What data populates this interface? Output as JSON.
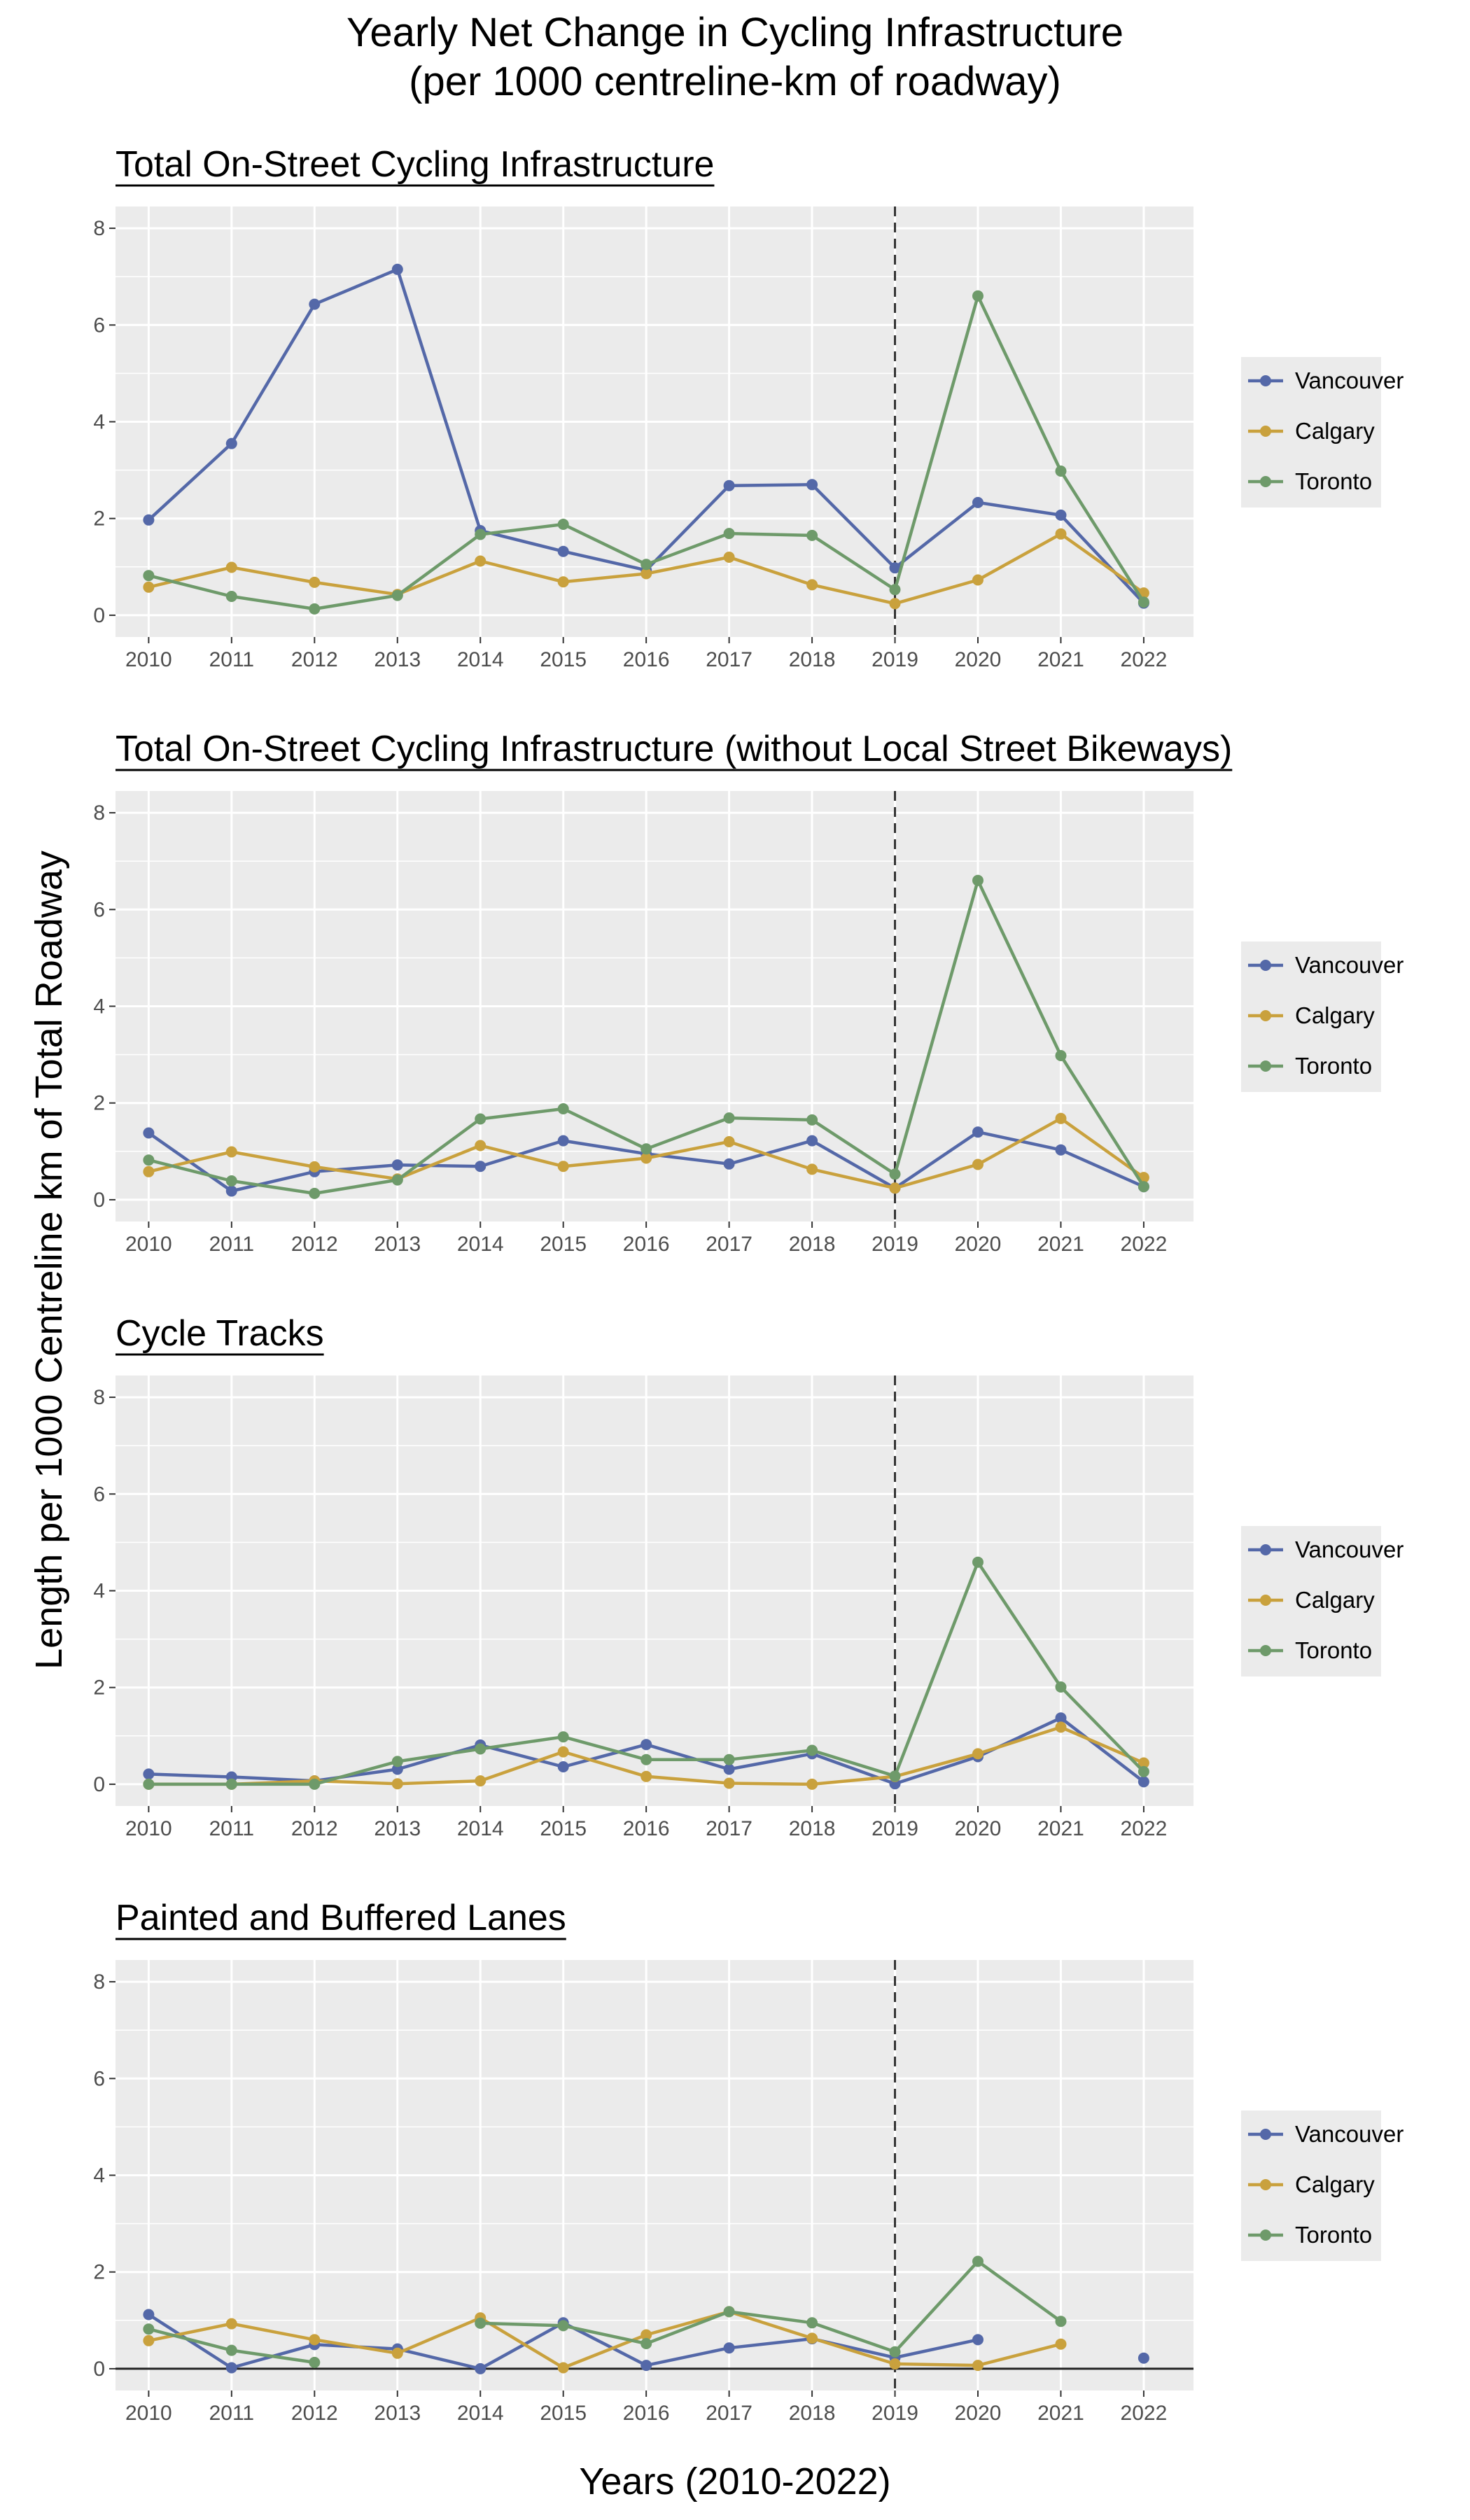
{
  "figure": {
    "title_line1": "Yearly Net Change in Cycling Infrastructure",
    "title_line2": "(per 1000 centreline-km of roadway)",
    "xlabel": "Years (2010-2022)",
    "ylabel": "Length per 1000 Centreline km of Total Roadway"
  },
  "chart_data": [
    {
      "type": "line",
      "title": "Total On-Street Cycling Infrastructure",
      "x": [
        2010,
        2011,
        2012,
        2013,
        2014,
        2015,
        2016,
        2017,
        2018,
        2019,
        2020,
        2021,
        2022
      ],
      "xlim": [
        2009.6,
        2022.6
      ],
      "ylim": [
        -0.45,
        8.45
      ],
      "yticks": [
        0,
        2,
        4,
        6,
        8
      ],
      "reference_line_x": 2019,
      "legend_position": "right",
      "grid": true,
      "series": [
        {
          "name": "Vancouver",
          "color": "#5468A8",
          "values": [
            1.97,
            3.55,
            6.43,
            7.15,
            1.75,
            1.32,
            0.93,
            2.68,
            2.7,
            0.98,
            2.33,
            2.07,
            0.25
          ]
        },
        {
          "name": "Calgary",
          "color": "#C9A13D",
          "values": [
            0.58,
            0.99,
            0.68,
            0.43,
            1.12,
            0.69,
            0.86,
            1.2,
            0.63,
            0.24,
            0.73,
            1.68,
            0.46
          ]
        },
        {
          "name": "Toronto",
          "color": "#6E9A6A",
          "values": [
            0.82,
            0.39,
            0.13,
            0.41,
            1.67,
            1.88,
            1.05,
            1.69,
            1.65,
            0.53,
            6.6,
            2.98,
            0.27
          ]
        }
      ]
    },
    {
      "type": "line",
      "title": "Total On-Street Cycling Infrastructure (without Local Street Bikeways)",
      "x": [
        2010,
        2011,
        2012,
        2013,
        2014,
        2015,
        2016,
        2017,
        2018,
        2019,
        2020,
        2021,
        2022
      ],
      "xlim": [
        2009.6,
        2022.6
      ],
      "ylim": [
        -0.45,
        8.45
      ],
      "yticks": [
        0,
        2,
        4,
        6,
        8
      ],
      "reference_line_x": 2019,
      "legend_position": "right",
      "grid": true,
      "series": [
        {
          "name": "Vancouver",
          "color": "#5468A8",
          "values": [
            1.38,
            0.18,
            0.58,
            0.72,
            0.69,
            1.22,
            0.95,
            0.74,
            1.22,
            0.24,
            1.4,
            1.03,
            0.27
          ]
        },
        {
          "name": "Calgary",
          "color": "#C9A13D",
          "values": [
            0.58,
            0.99,
            0.68,
            0.43,
            1.12,
            0.69,
            0.86,
            1.2,
            0.63,
            0.24,
            0.73,
            1.68,
            0.46
          ]
        },
        {
          "name": "Toronto",
          "color": "#6E9A6A",
          "values": [
            0.82,
            0.39,
            0.13,
            0.41,
            1.67,
            1.88,
            1.05,
            1.69,
            1.65,
            0.53,
            6.6,
            2.98,
            0.27
          ]
        }
      ]
    },
    {
      "type": "line",
      "title": "Cycle Tracks",
      "x": [
        2010,
        2011,
        2012,
        2013,
        2014,
        2015,
        2016,
        2017,
        2018,
        2019,
        2020,
        2021,
        2022
      ],
      "xlim": [
        2009.6,
        2022.6
      ],
      "ylim": [
        -0.45,
        8.45
      ],
      "yticks": [
        0,
        2,
        4,
        6,
        8
      ],
      "reference_line_x": 2019,
      "legend_position": "right",
      "grid": true,
      "series": [
        {
          "name": "Vancouver",
          "color": "#5468A8",
          "values": [
            0.21,
            0.15,
            0.07,
            0.31,
            0.81,
            0.36,
            0.82,
            0.31,
            0.63,
            0.01,
            0.57,
            1.37,
            0.05
          ]
        },
        {
          "name": "Calgary",
          "color": "#C9A13D",
          "values": [
            0.0,
            0.0,
            0.07,
            0.01,
            0.07,
            0.67,
            0.16,
            0.02,
            0.0,
            0.16,
            0.63,
            1.18,
            0.44
          ]
        },
        {
          "name": "Toronto",
          "color": "#6E9A6A",
          "values": [
            0.0,
            0.0,
            0.0,
            0.47,
            0.73,
            0.98,
            0.51,
            0.51,
            0.7,
            0.17,
            4.59,
            2.01,
            0.26
          ]
        }
      ]
    },
    {
      "type": "line",
      "title": "Painted and Buffered Lanes",
      "x": [
        2010,
        2011,
        2012,
        2013,
        2014,
        2015,
        2016,
        2017,
        2018,
        2019,
        2020,
        2021,
        2022
      ],
      "xlim": [
        2009.6,
        2022.6
      ],
      "ylim": [
        -0.45,
        8.45
      ],
      "yticks": [
        0,
        2,
        4,
        6,
        8
      ],
      "reference_line_x": 2019,
      "zero_line": true,
      "legend_position": "right",
      "grid": true,
      "series": [
        {
          "name": "Vancouver",
          "color": "#5468A8",
          "values": [
            1.12,
            0.02,
            0.5,
            0.41,
            0.0,
            0.95,
            0.07,
            0.43,
            0.62,
            0.23,
            0.6,
            null,
            0.22
          ]
        },
        {
          "name": "Calgary",
          "color": "#C9A13D",
          "values": [
            0.58,
            0.93,
            0.6,
            0.32,
            1.05,
            0.02,
            0.7,
            1.18,
            0.63,
            0.1,
            0.07,
            0.51,
            null
          ]
        },
        {
          "name": "Toronto",
          "color": "#6E9A6A",
          "values": [
            0.82,
            0.38,
            0.13,
            null,
            0.94,
            0.89,
            0.52,
            1.18,
            0.95,
            0.35,
            2.22,
            0.98,
            null
          ]
        }
      ]
    }
  ]
}
